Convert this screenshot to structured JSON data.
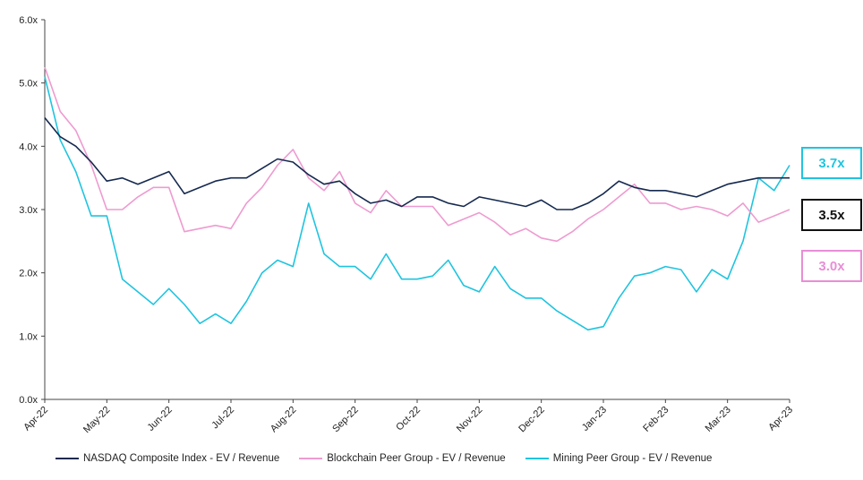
{
  "chart_data": {
    "type": "line",
    "title": "",
    "xlabel": "",
    "ylabel": "",
    "ylim": [
      0,
      6
    ],
    "y_ticks": [
      "0.0x",
      "1.0x",
      "2.0x",
      "3.0x",
      "4.0x",
      "5.0x",
      "6.0x"
    ],
    "x_ticks": [
      "Apr-22",
      "May-22",
      "Jun-22",
      "Jul-22",
      "Aug-22",
      "Sep-22",
      "Oct-22",
      "Nov-22",
      "Dec-22",
      "Jan-23",
      "Feb-23",
      "Mar-23",
      "Apr-23"
    ],
    "grid": false,
    "legend_position": "bottom",
    "x": [
      0,
      0.25,
      0.5,
      0.75,
      1,
      1.25,
      1.5,
      1.75,
      2,
      2.25,
      2.5,
      2.75,
      3,
      3.25,
      3.5,
      3.75,
      4,
      4.25,
      4.5,
      4.75,
      5,
      5.25,
      5.5,
      5.75,
      6,
      6.25,
      6.5,
      6.75,
      7,
      7.25,
      7.5,
      7.75,
      8,
      8.25,
      8.5,
      8.75,
      9,
      9.25,
      9.5,
      9.75,
      10,
      10.25,
      10.5,
      10.75,
      11,
      11.25,
      11.5,
      11.75,
      12
    ],
    "series": [
      {
        "name": "NASDAQ Composite Index - EV / Revenue",
        "color": "#15294f",
        "values": [
          4.45,
          4.15,
          4.0,
          3.75,
          3.45,
          3.5,
          3.4,
          3.5,
          3.6,
          3.25,
          3.35,
          3.45,
          3.5,
          3.5,
          3.65,
          3.8,
          3.75,
          3.55,
          3.4,
          3.45,
          3.25,
          3.1,
          3.15,
          3.05,
          3.2,
          3.2,
          3.1,
          3.05,
          3.2,
          3.15,
          3.1,
          3.05,
          3.15,
          3.0,
          3.0,
          3.1,
          3.25,
          3.45,
          3.35,
          3.3,
          3.3,
          3.25,
          3.2,
          3.3,
          3.4,
          3.45,
          3.5,
          3.5,
          3.5
        ]
      },
      {
        "name": "Blockchain Peer Group - EV / Revenue",
        "color": "#ee9bd0",
        "values": [
          5.25,
          4.55,
          4.25,
          3.7,
          3.0,
          3.0,
          3.2,
          3.35,
          3.35,
          2.65,
          2.7,
          2.75,
          2.7,
          3.1,
          3.35,
          3.7,
          3.95,
          3.5,
          3.3,
          3.6,
          3.1,
          2.95,
          3.3,
          3.05,
          3.05,
          3.05,
          2.75,
          2.85,
          2.95,
          2.8,
          2.6,
          2.7,
          2.55,
          2.5,
          2.65,
          2.85,
          3.0,
          3.2,
          3.4,
          3.1,
          3.1,
          3.0,
          3.05,
          3.0,
          2.9,
          3.1,
          2.8,
          2.9,
          3.0
        ]
      },
      {
        "name": "Mining Peer Group - EV / Revenue",
        "color": "#1fc4df",
        "values": [
          5.1,
          4.1,
          3.6,
          2.9,
          2.9,
          1.9,
          1.7,
          1.5,
          1.75,
          1.5,
          1.2,
          1.35,
          1.2,
          1.55,
          2.0,
          2.2,
          2.1,
          3.1,
          2.3,
          2.1,
          2.1,
          1.9,
          2.3,
          1.9,
          1.9,
          1.95,
          2.2,
          1.8,
          1.7,
          2.1,
          1.75,
          1.6,
          1.6,
          1.4,
          1.25,
          1.1,
          1.15,
          1.6,
          1.95,
          2.0,
          2.1,
          2.05,
          1.7,
          2.05,
          1.9,
          2.5,
          3.5,
          3.3,
          3.7
        ]
      }
    ],
    "callouts": [
      {
        "label": "3.7x",
        "color": "#1fc4df"
      },
      {
        "label": "3.5x",
        "color": "#111111"
      },
      {
        "label": "3.0x",
        "color": "#e88ed6"
      }
    ]
  }
}
